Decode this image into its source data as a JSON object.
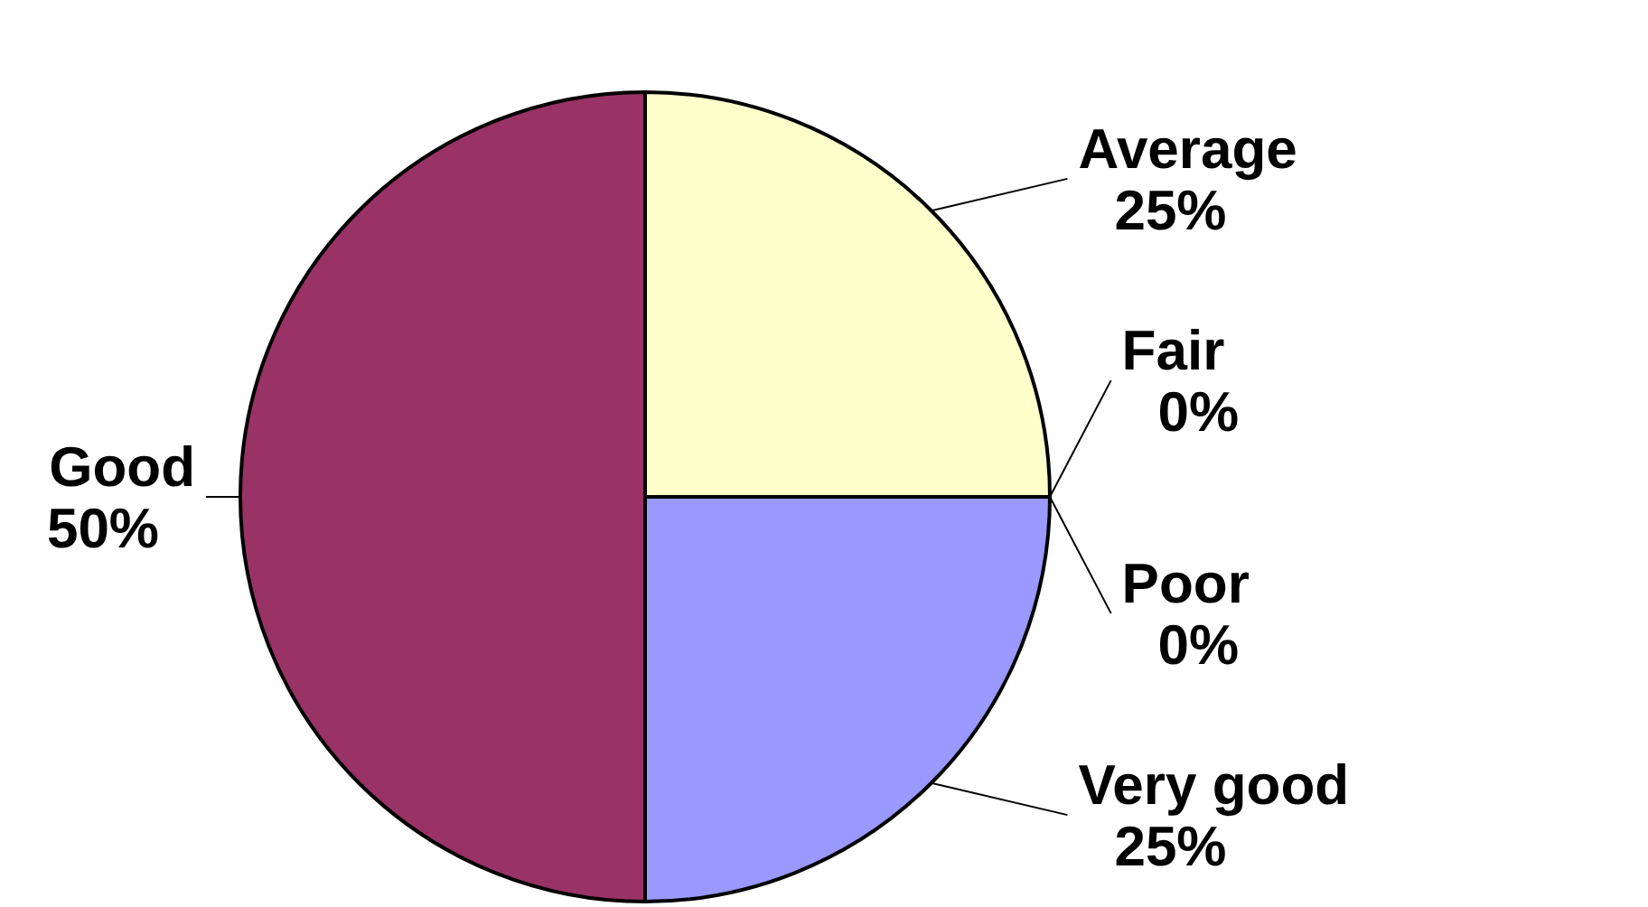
{
  "chart_data": {
    "type": "pie",
    "categories": [
      "Average",
      "Fair",
      "Poor",
      "Very good",
      "Good"
    ],
    "values": [
      25,
      0,
      0,
      25,
      50
    ],
    "value_labels": [
      "25%",
      "0%",
      "0%",
      "25%",
      "50%"
    ],
    "colors": [
      "#ffffcc",
      "#ccffff",
      "#660066",
      "#9999ff",
      "#993366"
    ]
  }
}
